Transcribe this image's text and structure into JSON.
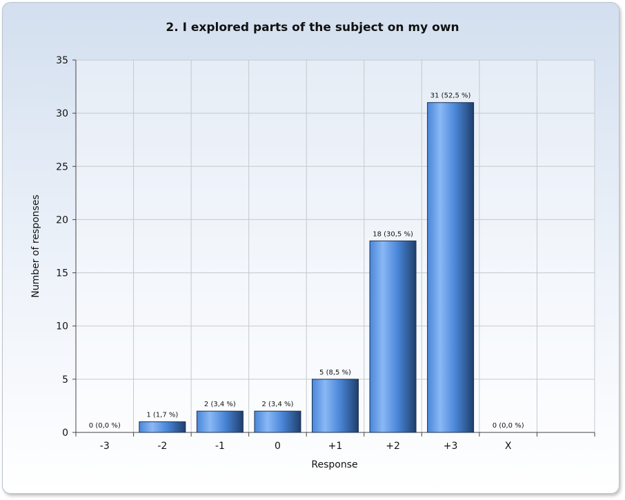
{
  "chart_data": {
    "type": "bar",
    "title": "2. I explored parts of the subject on my own",
    "xlabel": "Response",
    "ylabel": "Number of responses",
    "categories": [
      "-3",
      "-2",
      "-1",
      "0",
      "+1",
      "+2",
      "+3",
      "X"
    ],
    "values": [
      0,
      1,
      2,
      2,
      5,
      18,
      31,
      0
    ],
    "data_labels": [
      "0 (0,0 %)",
      "1 (1,7 %)",
      "2 (3,4 %)",
      "2 (3,4 %)",
      "5 (8,5 %)",
      "18 (30,5 %)",
      "31 (52,5 %)",
      "0 (0,0 %)"
    ],
    "ylim": [
      0,
      35
    ],
    "yticks": [
      0,
      5,
      10,
      15,
      20,
      25,
      30,
      35
    ],
    "grid": true,
    "legend": "none",
    "colors": {
      "bar_light": "#8ab8f5",
      "bar_mid": "#4a86d8",
      "bar_dark": "#1f3f6c",
      "grid": "#c4c8cd"
    }
  }
}
